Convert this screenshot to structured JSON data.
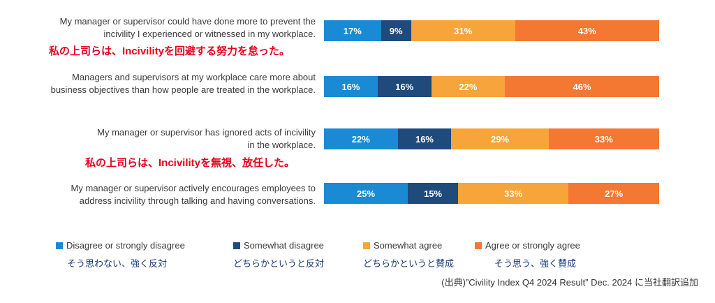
{
  "chart_data": {
    "type": "bar",
    "orientation": "horizontal",
    "stacked": true,
    "percent_labels": true,
    "categories": [
      "My manager or supervisor could have done more to prevent the incivility I experienced or witnessed in my workplace.",
      "Managers and supervisors at my workplace care more about business objectives than how people are treated in the workplace.",
      "My manager or supervisor has ignored acts of incivility in the workplace.",
      "My manager or supervisor actively encourages employees to address incivility through talking and having conversations."
    ],
    "series": [
      {
        "name": "Disagree or strongly disagree",
        "name_jp": "そう思わない、強く反対",
        "color": "#1a8ad4",
        "values": [
          17,
          16,
          22,
          25
        ]
      },
      {
        "name": "Somewhat disagree",
        "name_jp": "どちらかというと反対",
        "color": "#1f4a7c",
        "values": [
          9,
          16,
          16,
          15
        ]
      },
      {
        "name": "Somewhat agree",
        "name_jp": "どちらかというと賛成",
        "color": "#f7a43a",
        "values": [
          31,
          22,
          29,
          33
        ]
      },
      {
        "name": "Agree or strongly agree",
        "name_jp": "そう思う、強く賛成",
        "color": "#f47732",
        "values": [
          43,
          46,
          33,
          27
        ]
      }
    ],
    "legend": "bottom"
  },
  "questions": [
    {
      "line1": "My manager or supervisor could have done more to prevent the",
      "line2": "incivility I experienced or witnessed in my workplace.",
      "note": "私の上司らは、Incivilityを回避する努力を怠った。"
    },
    {
      "line1": "Managers and supervisors at my workplace care more about",
      "line2": "business objectives than how people are treated in the workplace.",
      "note": ""
    },
    {
      "line1": "My manager or supervisor has ignored acts of incivility",
      "line2": "in the workplace.",
      "note": "私の上司らは、Incivilityを無視、放任した。"
    },
    {
      "line1": "My manager or supervisor actively encourages employees to",
      "line2": "address incivility through talking and having conversations.",
      "note": ""
    }
  ],
  "legend": {
    "items": [
      {
        "label": "Disagree or strongly disagree",
        "label_jp": "そう思わない、強く反対",
        "color": "#1a8ad4"
      },
      {
        "label": "Somewhat disagree",
        "label_jp": "どちらかというと反対",
        "color": "#1f4a7c"
      },
      {
        "label": "Somewhat agree",
        "label_jp": "どちらかというと賛成",
        "color": "#f7a43a"
      },
      {
        "label": "Agree or strongly agree",
        "label_jp": "そう思う、強く賛成",
        "color": "#f47732"
      }
    ]
  },
  "source": "(出典)”Civility Index Q4 2024 Result” Dec. 2024 に当社翻訳追加"
}
